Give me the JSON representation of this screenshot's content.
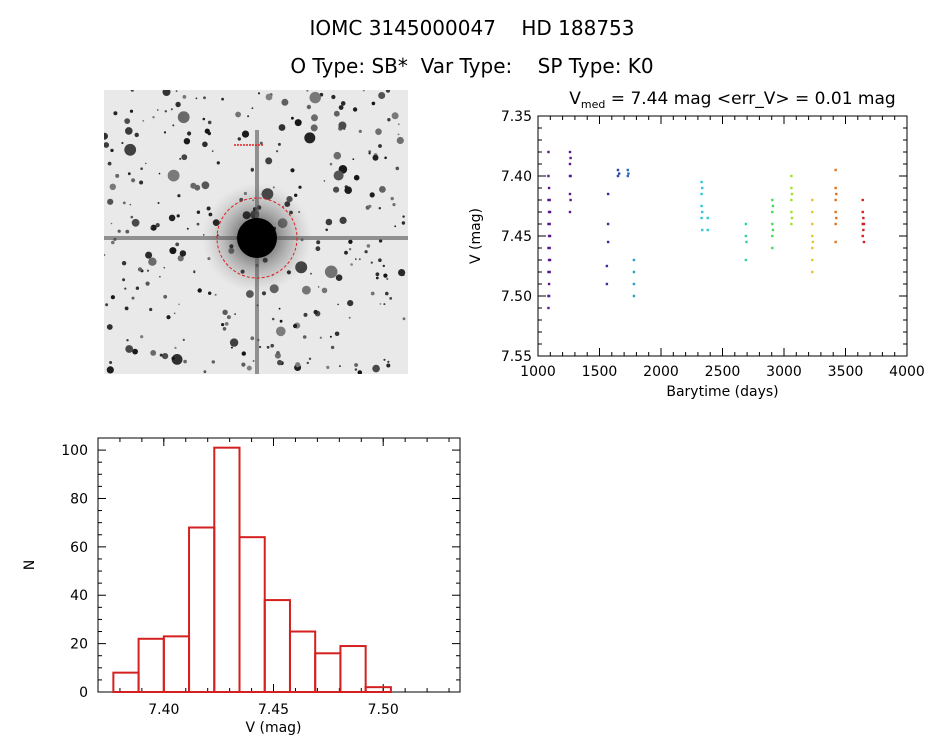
{
  "header": {
    "id_line": "IOMC 3145000047    HD 188753",
    "type_line": "O Type: SB*  Var Type:    SP Type: K0"
  },
  "colors": {
    "axes": "#000000",
    "histogram": "#d42020",
    "reticle": "#e02020"
  },
  "chart_data": [
    {
      "type": "image",
      "description_items": [
        "star-field-image"
      ],
      "reticle": true
    },
    {
      "type": "scatter",
      "title_parts": {
        "v": "V",
        "sub": "med",
        "rest": " = 7.44 mag <err_V> = 0.01 mag"
      },
      "xlabel": "Barytime (days)",
      "ylabel": "V (mag)",
      "xlim": [
        1000,
        4000
      ],
      "ylim": [
        7.55,
        7.35
      ],
      "xticks": [
        1000,
        1500,
        2000,
        2500,
        3000,
        3500,
        4000
      ],
      "yticks": [
        7.35,
        7.4,
        7.45,
        7.5,
        7.55
      ],
      "series": [
        {
          "color": "#5a1a8a",
          "points": [
            [
              1085,
              7.38
            ],
            [
              1085,
              7.4
            ],
            [
              1085,
              7.42
            ],
            [
              1085,
              7.44
            ],
            [
              1085,
              7.46
            ],
            [
              1085,
              7.48
            ],
            [
              1085,
              7.5
            ],
            [
              1085,
              7.51
            ],
            [
              1090,
              7.41
            ],
            [
              1090,
              7.43
            ],
            [
              1090,
              7.45
            ],
            [
              1090,
              7.47
            ],
            [
              1090,
              7.49
            ],
            [
              1090,
              7.5
            ],
            [
              1095,
              7.42
            ],
            [
              1095,
              7.44
            ],
            [
              1095,
              7.46
            ],
            [
              1095,
              7.48
            ],
            [
              1098,
              7.43
            ],
            [
              1098,
              7.45
            ],
            [
              1098,
              7.47
            ]
          ]
        },
        {
          "color": "#5a1a8a",
          "points": [
            [
              1260,
              7.38
            ],
            [
              1260,
              7.39
            ],
            [
              1260,
              7.4
            ],
            [
              1260,
              7.415
            ],
            [
              1260,
              7.43
            ],
            [
              1265,
              7.385
            ],
            [
              1265,
              7.4
            ],
            [
              1265,
              7.42
            ]
          ]
        },
        {
          "color": "#3a2a9a",
          "points": [
            [
              1570,
              7.415
            ],
            [
              1570,
              7.44
            ],
            [
              1570,
              7.455
            ],
            [
              1560,
              7.475
            ],
            [
              1560,
              7.49
            ]
          ]
        },
        {
          "color": "#2a4aaa",
          "points": [
            [
              1650,
              7.395
            ],
            [
              1650,
              7.4
            ],
            [
              1660,
              7.398
            ]
          ]
        },
        {
          "color": "#2a6ab8",
          "points": [
            [
              1730,
              7.395
            ],
            [
              1730,
              7.4
            ],
            [
              1735,
              7.398
            ]
          ]
        },
        {
          "color": "#2aa0c8",
          "points": [
            [
              1780,
              7.47
            ],
            [
              1780,
              7.48
            ],
            [
              1780,
              7.49
            ],
            [
              1780,
              7.5
            ]
          ]
        },
        {
          "color": "#30c8d8",
          "points": [
            [
              2330,
              7.405
            ],
            [
              2330,
              7.415
            ],
            [
              2330,
              7.425
            ],
            [
              2330,
              7.435
            ],
            [
              2335,
              7.41
            ],
            [
              2335,
              7.43
            ],
            [
              2335,
              7.445
            ],
            [
              2380,
              7.435
            ],
            [
              2380,
              7.445
            ]
          ]
        },
        {
          "color": "#30d890",
          "points": [
            [
              2690,
              7.44
            ],
            [
              2690,
              7.45
            ],
            [
              2690,
              7.47
            ],
            [
              2695,
              7.455
            ]
          ]
        },
        {
          "color": "#40e050",
          "points": [
            [
              2905,
              7.42
            ],
            [
              2905,
              7.43
            ],
            [
              2905,
              7.44
            ],
            [
              2905,
              7.45
            ],
            [
              2905,
              7.46
            ],
            [
              2910,
              7.425
            ],
            [
              2910,
              7.445
            ]
          ]
        },
        {
          "color": "#a0e030",
          "points": [
            [
              3060,
              7.4
            ],
            [
              3060,
              7.41
            ],
            [
              3060,
              7.42
            ],
            [
              3060,
              7.43
            ],
            [
              3060,
              7.44
            ],
            [
              3065,
              7.415
            ],
            [
              3065,
              7.435
            ]
          ]
        },
        {
          "color": "#e8c820",
          "points": [
            [
              3230,
              7.42
            ],
            [
              3230,
              7.43
            ],
            [
              3230,
              7.44
            ],
            [
              3230,
              7.45
            ],
            [
              3230,
              7.46
            ],
            [
              3230,
              7.47
            ],
            [
              3230,
              7.48
            ],
            [
              3235,
              7.455
            ]
          ]
        },
        {
          "color": "#e07020",
          "points": [
            [
              3420,
              7.395
            ],
            [
              3420,
              7.41
            ],
            [
              3420,
              7.42
            ],
            [
              3420,
              7.43
            ],
            [
              3420,
              7.44
            ],
            [
              3420,
              7.455
            ],
            [
              3425,
              7.415
            ],
            [
              3425,
              7.435
            ]
          ]
        },
        {
          "color": "#d42020",
          "points": [
            [
              3640,
              7.42
            ],
            [
              3640,
              7.43
            ],
            [
              3640,
              7.44
            ],
            [
              3640,
              7.45
            ],
            [
              3645,
              7.435
            ],
            [
              3645,
              7.445
            ],
            [
              3650,
              7.44
            ],
            [
              3650,
              7.455
            ]
          ]
        }
      ]
    },
    {
      "type": "bar",
      "xlabel": "V (mag)",
      "ylabel": "N",
      "xlim": [
        7.37,
        7.535
      ],
      "ylim": [
        0,
        105
      ],
      "xticks": [
        7.4,
        7.45,
        7.5
      ],
      "xticklabels": [
        "7.40",
        "7.45",
        "7.50"
      ],
      "yticks": [
        0,
        20,
        40,
        60,
        80,
        100
      ],
      "bin_width": 0.0115,
      "bin_starts": [
        7.377,
        7.3885,
        7.4,
        7.4115,
        7.423,
        7.4345,
        7.446,
        7.4575,
        7.469,
        7.4805,
        7.492,
        7.5035
      ],
      "values": [
        8,
        22,
        23,
        68,
        101,
        64,
        38,
        25,
        16,
        19,
        2,
        0
      ]
    }
  ]
}
